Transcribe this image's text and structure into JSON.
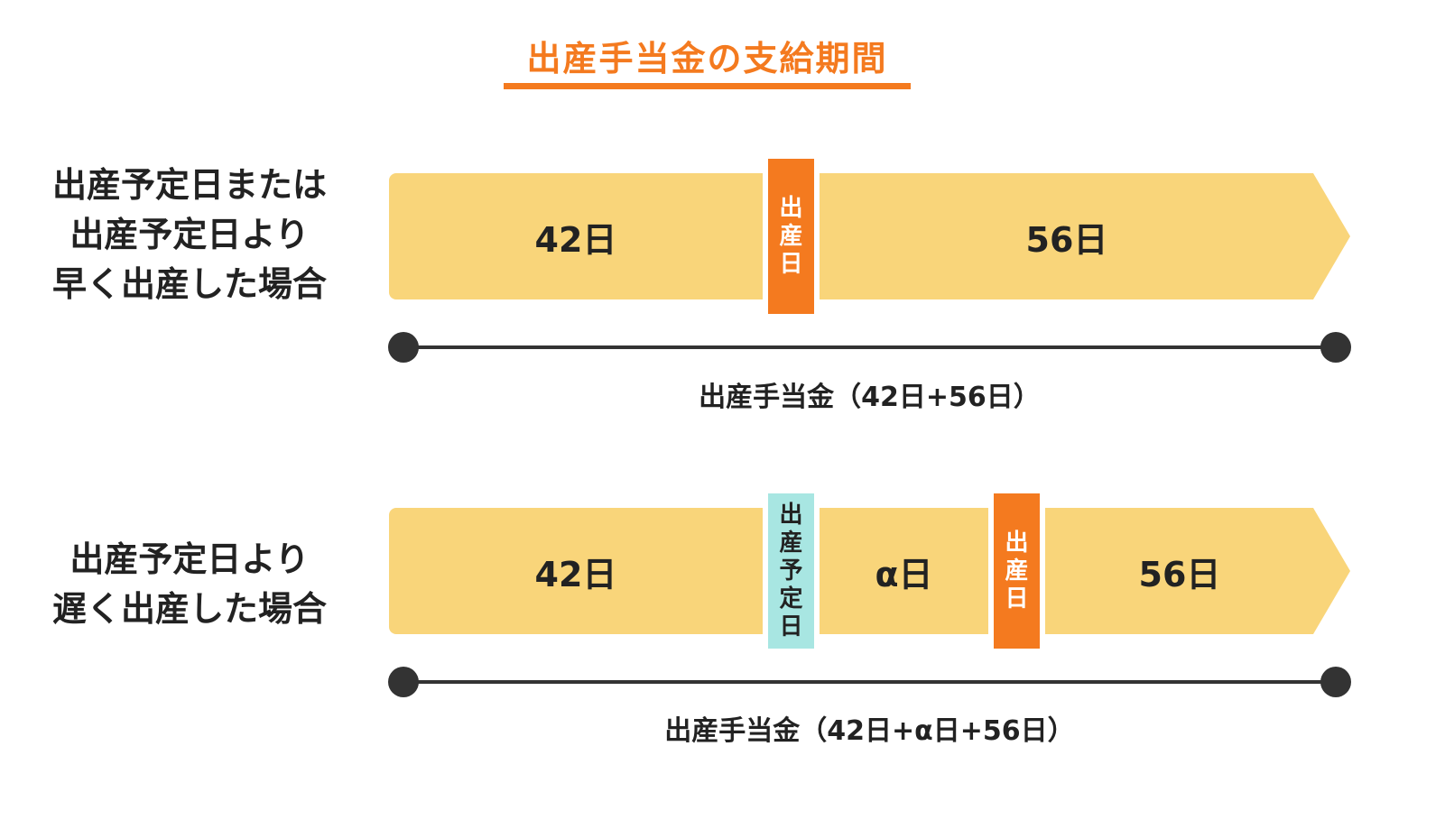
{
  "title": "出産手当金の支給期間",
  "colors": {
    "accent": "#F47A1F",
    "bar": "#F9D57A",
    "scheduled_marker": "#A8E6E2",
    "line": "#333333"
  },
  "rows": [
    {
      "label_lines": [
        "出産予定日または",
        "出産予定日より",
        "早く出産した場合"
      ],
      "before": "42日",
      "birth_marker": [
        "出",
        "産",
        "日"
      ],
      "after": "56日",
      "total": "出産手当金（42日+56日）"
    },
    {
      "label_lines": [
        "出産予定日より",
        "遅く出産した場合"
      ],
      "before": "42日",
      "scheduled_marker": [
        "出",
        "産",
        "予",
        "定",
        "日"
      ],
      "delay": "α日",
      "birth_marker": [
        "出",
        "産",
        "日"
      ],
      "after": "56日",
      "total": "出産手当金（42日+α日+56日）"
    }
  ]
}
